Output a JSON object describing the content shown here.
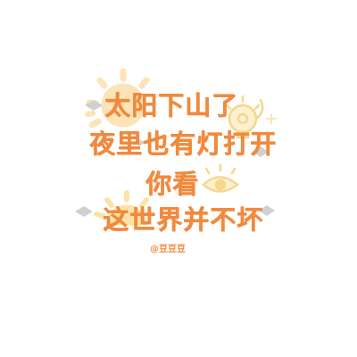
{
  "text_lines": [
    "太阳下山了",
    "夜里也有灯打开",
    "你看",
    "这世界并不坏"
  ],
  "watermark": "@豆豆豆",
  "colors": {
    "text": "#f08a3e",
    "sun": "#fde3b8",
    "sun_small": "#fbe3a8",
    "bow": "#d0d0d0",
    "bulb": "#f6d78e",
    "eye": "#f6d78e"
  },
  "icons": [
    "sun-icon",
    "lightbulb-icon",
    "eye-icon",
    "bow-icon",
    "sparkle-icon"
  ]
}
